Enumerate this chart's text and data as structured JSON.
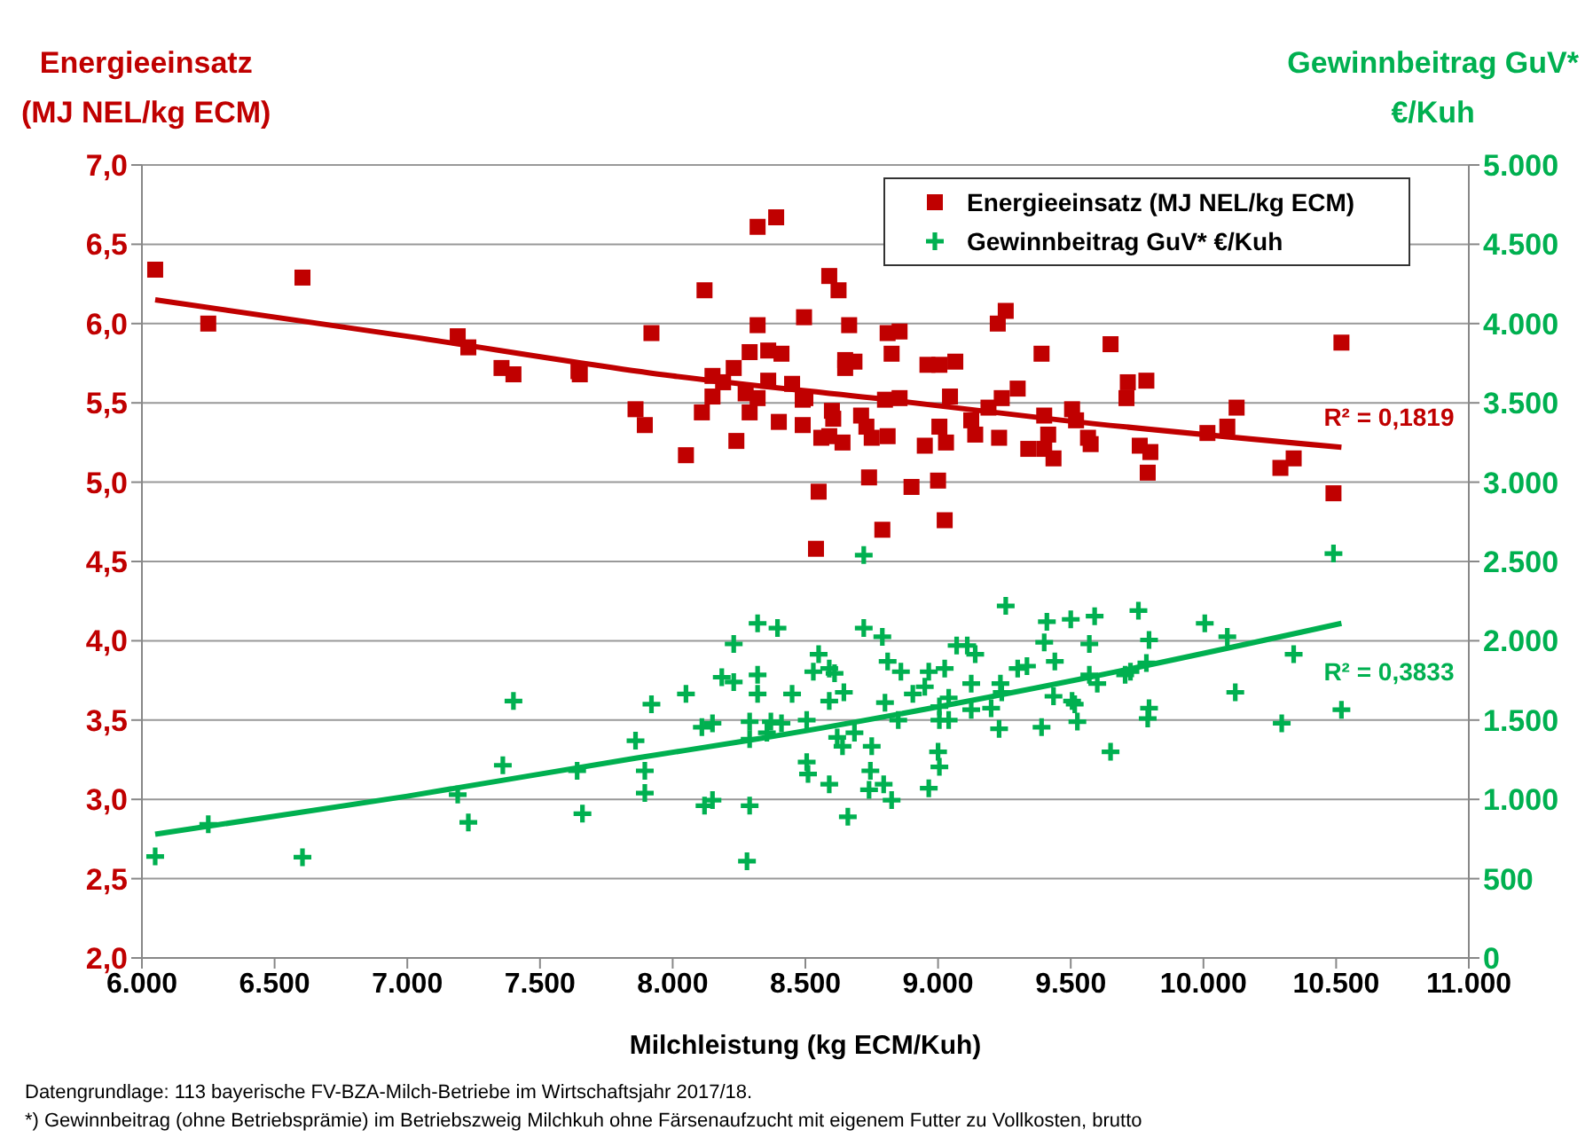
{
  "chart_data": {
    "type": "scatter",
    "ylabel": "Energieeinsatz\n(MJ NEL/kg ECM)",
    "y2label": "Gewinnbeitrag GuV*\n€/Kuh",
    "xlabel": "Milchleistung   (kg ECM/Kuh)",
    "xlim": [
      6000,
      11000
    ],
    "xticks": [
      {
        "value": 6000,
        "label": "6.000"
      },
      {
        "value": 6500,
        "label": "6.500"
      },
      {
        "value": 7000,
        "label": "7.000"
      },
      {
        "value": 7500,
        "label": "7.500"
      },
      {
        "value": 8000,
        "label": "8.000"
      },
      {
        "value": 8500,
        "label": "8.500"
      },
      {
        "value": 9000,
        "label": "9.000"
      },
      {
        "value": 9500,
        "label": "9.500"
      },
      {
        "value": 10000,
        "label": "10.000"
      },
      {
        "value": 10500,
        "label": "10.500"
      },
      {
        "value": 11000,
        "label": "11.000"
      }
    ],
    "ylim": [
      2,
      7
    ],
    "yticks": [
      {
        "value": 2,
        "label": "2,0"
      },
      {
        "value": 2.5,
        "label": "2,5"
      },
      {
        "value": 3,
        "label": "3,0"
      },
      {
        "value": 3.5,
        "label": "3,5"
      },
      {
        "value": 4,
        "label": "4,0"
      },
      {
        "value": 4.5,
        "label": "4,5"
      },
      {
        "value": 5,
        "label": "5,0"
      },
      {
        "value": 5.5,
        "label": "5,5"
      },
      {
        "value": 6,
        "label": "6,0"
      },
      {
        "value": 6.5,
        "label": "6,5"
      },
      {
        "value": 7,
        "label": "7,0"
      }
    ],
    "y2lim": [
      0,
      5000
    ],
    "y2ticks": [
      0,
      500,
      {
        "value": 1000,
        "label": "1.000"
      },
      {
        "value": 1500,
        "label": "1.500"
      },
      {
        "value": 2000,
        "label": "2.000"
      },
      {
        "value": 2500,
        "label": "2.500"
      },
      {
        "value": 3000,
        "label": "3.000"
      },
      {
        "value": 3500,
        "label": "3.500"
      },
      {
        "value": 4000,
        "label": "4.000"
      },
      {
        "value": 4500,
        "label": "4.500"
      },
      {
        "value": 5000,
        "label": "5.000"
      }
    ],
    "grid": "y",
    "legend": "top right",
    "series": [
      {
        "name": "Energieeinsatz (MJ NEL/kg ECM)",
        "marker": "square",
        "color": "#c00000",
        "x": [
          6050,
          6250,
          6605,
          7190,
          7230,
          7355,
          7400,
          7645,
          7650,
          7860,
          7895,
          7920,
          8050,
          8120,
          8110,
          8150,
          8150,
          8190,
          8230,
          8240,
          8290,
          8320,
          8320,
          8390,
          8275,
          8320,
          8290,
          8360,
          8410,
          8360,
          8450,
          8400,
          8495,
          8490,
          8490,
          8500,
          8550,
          8540,
          8590,
          8625,
          8665,
          8650,
          8685,
          8650,
          8600,
          8605,
          8560,
          8590,
          8640,
          8710,
          8730,
          8750,
          8810,
          8740,
          8790,
          8810,
          8855,
          8825,
          8800,
          8855,
          8960,
          9005,
          9065,
          9045,
          8950,
          9005,
          9030,
          8900,
          9000,
          9025,
          9125,
          9140,
          9230,
          9190,
          9240,
          9300,
          9225,
          9255,
          9390,
          9400,
          9415,
          9340,
          9435,
          9400,
          9505,
          9520,
          9565,
          9575,
          9650,
          9715,
          9710,
          9785,
          9760,
          9800,
          9790,
          10015,
          10090,
          10125,
          10290,
          10340,
          10520,
          10490
        ],
        "values": [
          6.34,
          6.0,
          6.29,
          5.92,
          5.85,
          5.72,
          5.68,
          5.7,
          5.68,
          5.46,
          5.36,
          5.94,
          5.17,
          6.21,
          5.44,
          5.67,
          5.54,
          5.63,
          5.72,
          5.26,
          5.82,
          5.99,
          6.61,
          6.67,
          5.56,
          5.53,
          5.44,
          5.83,
          5.81,
          5.64,
          5.62,
          5.38,
          6.04,
          5.52,
          5.36,
          5.53,
          4.94,
          4.58,
          6.3,
          6.21,
          5.99,
          5.77,
          5.76,
          5.72,
          5.45,
          5.4,
          5.28,
          5.29,
          5.25,
          5.42,
          5.35,
          5.28,
          5.29,
          5.03,
          4.7,
          5.94,
          5.95,
          5.81,
          5.52,
          5.53,
          5.74,
          5.74,
          5.76,
          5.54,
          5.23,
          5.35,
          5.25,
          4.97,
          5.01,
          4.76,
          5.39,
          5.3,
          5.28,
          5.47,
          5.53,
          5.59,
          6.0,
          6.08,
          5.81,
          5.42,
          5.3,
          5.21,
          5.15,
          5.21,
          5.46,
          5.39,
          5.28,
          5.24,
          5.87,
          5.63,
          5.53,
          5.64,
          5.23,
          5.19,
          5.06,
          5.31,
          5.35,
          5.47,
          5.09,
          5.15,
          5.88,
          4.93
        ]
      },
      {
        "name": "Gewinnbeitrag GuV* €/Kuh",
        "marker": "cross",
        "color": "#00b050",
        "axis": "y2",
        "x": [
          6050,
          6250,
          6605,
          7190,
          7230,
          7360,
          7400,
          7640,
          7660,
          7860,
          7895,
          7895,
          7920,
          8050,
          8110,
          8150,
          8120,
          8150,
          8230,
          8185,
          8230,
          8320,
          8395,
          8320,
          8320,
          8290,
          8290,
          8290,
          8280,
          8370,
          8410,
          8355,
          8450,
          8720,
          8505,
          8505,
          8510,
          8590,
          8550,
          8530,
          8590,
          8610,
          8590,
          8645,
          8620,
          8640,
          8685,
          8660,
          8720,
          8790,
          8750,
          8745,
          8740,
          8795,
          8825,
          8810,
          8860,
          8800,
          8850,
          8905,
          8950,
          8965,
          9025,
          9005,
          9040,
          9005,
          9040,
          9000,
          9005,
          8965,
          9070,
          9110,
          9140,
          9125,
          9125,
          9200,
          9230,
          9235,
          9240,
          9255,
          9300,
          9335,
          9390,
          9435,
          9440,
          9400,
          9410,
          9500,
          9505,
          9515,
          9525,
          9570,
          9570,
          9600,
          9590,
          9650,
          9705,
          9725,
          9785,
          9755,
          9795,
          9790,
          9795,
          10005,
          10090,
          10120,
          10340,
          10295,
          10490,
          10520
        ],
        "values": [
          640,
          843,
          635,
          1030,
          855,
          1215,
          1620,
          1180,
          910,
          1370,
          1180,
          1040,
          1600,
          1665,
          1455,
          1480,
          960,
          995,
          1980,
          1770,
          1740,
          2110,
          2080,
          1785,
          1665,
          1490,
          1380,
          960,
          610,
          1490,
          1480,
          1420,
          1665,
          2540,
          1500,
          1235,
          1160,
          1095,
          1915,
          1805,
          1825,
          1795,
          1620,
          1675,
          1390,
          1335,
          1420,
          890,
          2080,
          2025,
          1335,
          1180,
          1060,
          1095,
          995,
          1870,
          1805,
          1610,
          1500,
          1665,
          1710,
          1805,
          1825,
          1585,
          1640,
          1500,
          1500,
          1300,
          1205,
          1070,
          1970,
          1970,
          1915,
          1730,
          1565,
          1575,
          1445,
          1730,
          1675,
          2220,
          1825,
          1840,
          1455,
          1650,
          1870,
          1990,
          2120,
          2135,
          1620,
          1600,
          1490,
          1980,
          1785,
          1730,
          2155,
          1300,
          1785,
          1805,
          1860,
          2190,
          2005,
          1510,
          1575,
          2110,
          2025,
          1675,
          1915,
          1480,
          2550,
          1565
        ]
      },
      {
        "type": "line",
        "marker": "none",
        "color": "#c00000",
        "x": [
          6050,
          7000,
          8000,
          8810,
          9470,
          10520
        ],
        "values": [
          6.15,
          5.92,
          5.67,
          5.52,
          5.39,
          5.22
        ]
      },
      {
        "type": "line",
        "marker": "none",
        "color": "#00b050",
        "axis": "y2",
        "x": [
          6050,
          7000,
          7860,
          8280,
          9570,
          10520
        ],
        "values": [
          780,
          1020,
          1260,
          1370,
          1770,
          2110
        ]
      }
    ],
    "annotations": [
      "R² = 0,1819",
      "R² = 0,3833",
      "Datengrundlage: 113 bayerische FV-BZA-Milch-Betriebe im Wirtschaftsjahr 2017/18.",
      "*) Gewinnbeitrag (ohne Betriebsprämie) im Betriebszweig Milchkuh ohne Färsenaufzucht mit eigenem Futter zu Vollkosten, brutto"
    ]
  }
}
